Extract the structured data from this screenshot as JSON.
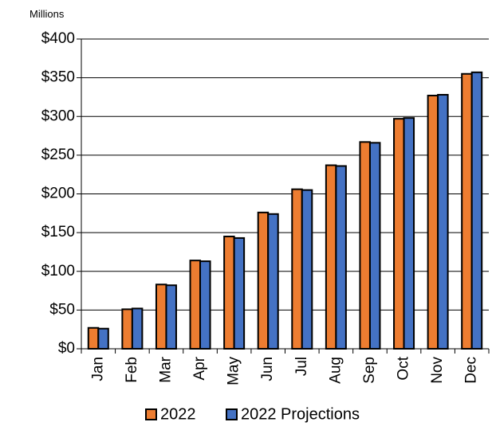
{
  "chart_data": {
    "type": "bar",
    "unit_label": "Millions",
    "categories": [
      "Jan",
      "Feb",
      "Mar",
      "Apr",
      "May",
      "Jun",
      "Jul",
      "Aug",
      "Sep",
      "Oct",
      "Nov",
      "Dec"
    ],
    "series": [
      {
        "name": "2022",
        "color": "#ED7D31",
        "values": [
          27,
          51,
          83,
          114,
          145,
          176,
          206,
          237,
          267,
          297,
          327,
          355
        ]
      },
      {
        "name": "2022 Projections",
        "color": "#4472C4",
        "values": [
          26,
          52,
          82,
          113,
          143,
          174,
          205,
          236,
          266,
          298,
          328,
          357
        ]
      }
    ],
    "ylim": [
      0,
      400
    ],
    "y_ticks": [
      0,
      50,
      100,
      150,
      200,
      250,
      300,
      350,
      400
    ],
    "y_tick_labels": [
      "$0",
      "$50",
      "$100",
      "$150",
      "$200",
      "$250",
      "$300",
      "$350",
      "$400"
    ],
    "grid": true,
    "legend_position": "bottom"
  }
}
